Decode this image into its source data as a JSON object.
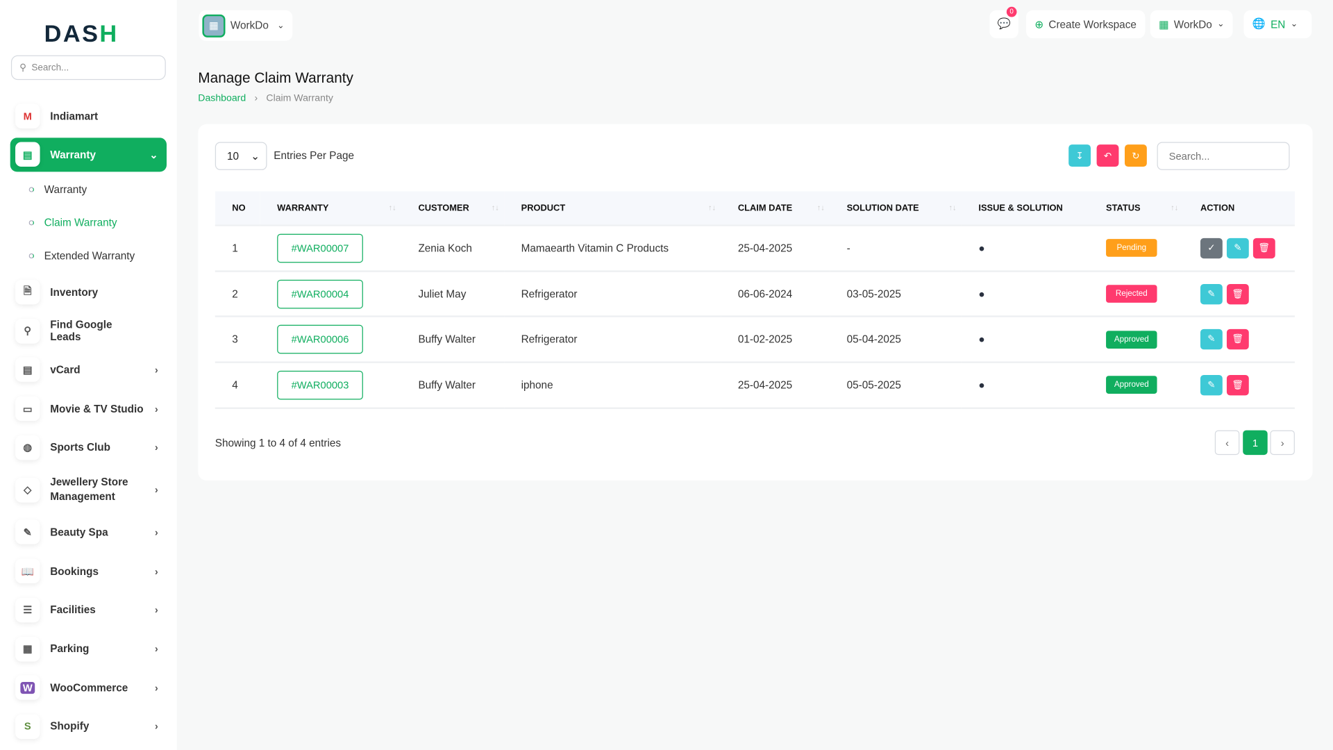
{
  "brand": {
    "logo": "DASH"
  },
  "sidebar": {
    "search_placeholder": "Search...",
    "items": [
      {
        "label": "Indiamart",
        "icon": "indiamart-logo-icon"
      },
      {
        "label": "Warranty",
        "icon": "book-icon",
        "active": true,
        "children": [
          {
            "label": "Warranty"
          },
          {
            "label": "Claim Warranty",
            "active": true
          },
          {
            "label": "Extended Warranty"
          }
        ]
      },
      {
        "label": "Inventory",
        "icon": "file-icon"
      },
      {
        "label": "Find Google Leads",
        "icon": "search-icon"
      },
      {
        "label": "vCard",
        "icon": "card-icon"
      },
      {
        "label": "Movie & TV Studio",
        "icon": "tv-icon"
      },
      {
        "label": "Sports Club",
        "icon": "ball-icon"
      },
      {
        "label": "Jewellery Store Management",
        "icon": "diamond-icon"
      },
      {
        "label": "Beauty Spa",
        "icon": "brush-icon"
      },
      {
        "label": "Bookings",
        "icon": "open-book-icon"
      },
      {
        "label": "Facilities",
        "icon": "sliders-icon"
      },
      {
        "label": "Parking",
        "icon": "parking-icon"
      },
      {
        "label": "WooCommerce",
        "icon": "woocommerce-icon"
      },
      {
        "label": "Shopify",
        "icon": "shopify-icon"
      }
    ]
  },
  "topbar": {
    "workspace": "WorkDo",
    "messages_count": "0",
    "create_workspace": "Create Workspace",
    "user_workspace": "WorkDo",
    "language": "EN"
  },
  "page": {
    "title": "Manage Claim Warranty",
    "breadcrumb": [
      "Dashboard",
      "Claim Warranty"
    ]
  },
  "table_controls": {
    "per_page": "10",
    "per_page_label": "Entries Per Page",
    "search_placeholder": "Search..."
  },
  "table": {
    "columns": [
      "NO",
      "WARRANTY",
      "CUSTOMER",
      "PRODUCT",
      "CLAIM DATE",
      "SOLUTION DATE",
      "ISSUE & SOLUTION",
      "STATUS",
      "ACTION"
    ],
    "rows": [
      {
        "no": "1",
        "warranty": "#WAR00007",
        "customer": "Zenia Koch",
        "product": "Mamaearth Vitamin C Products",
        "claim_date": "25-04-2025",
        "solution_date": "-",
        "status": "Pending",
        "approve_action": true
      },
      {
        "no": "2",
        "warranty": "#WAR00004",
        "customer": "Juliet May",
        "product": "Refrigerator",
        "claim_date": "06-06-2024",
        "solution_date": "03-05-2025",
        "status": "Rejected"
      },
      {
        "no": "3",
        "warranty": "#WAR00006",
        "customer": "Buffy Walter",
        "product": "Refrigerator",
        "claim_date": "01-02-2025",
        "solution_date": "05-04-2025",
        "status": "Approved"
      },
      {
        "no": "4",
        "warranty": "#WAR00003",
        "customer": "Buffy Walter",
        "product": "iphone",
        "claim_date": "25-04-2025",
        "solution_date": "05-05-2025",
        "status": "Approved"
      }
    ]
  },
  "footer": {
    "showing": "Showing 1 to 4 of 4 entries",
    "current_page": "1"
  },
  "colors": {
    "primary": "#10ae5f",
    "pending": "#ff9f1a",
    "rejected": "#ff3a6e",
    "approved": "#10ae5f",
    "info": "#3ec9d6"
  }
}
